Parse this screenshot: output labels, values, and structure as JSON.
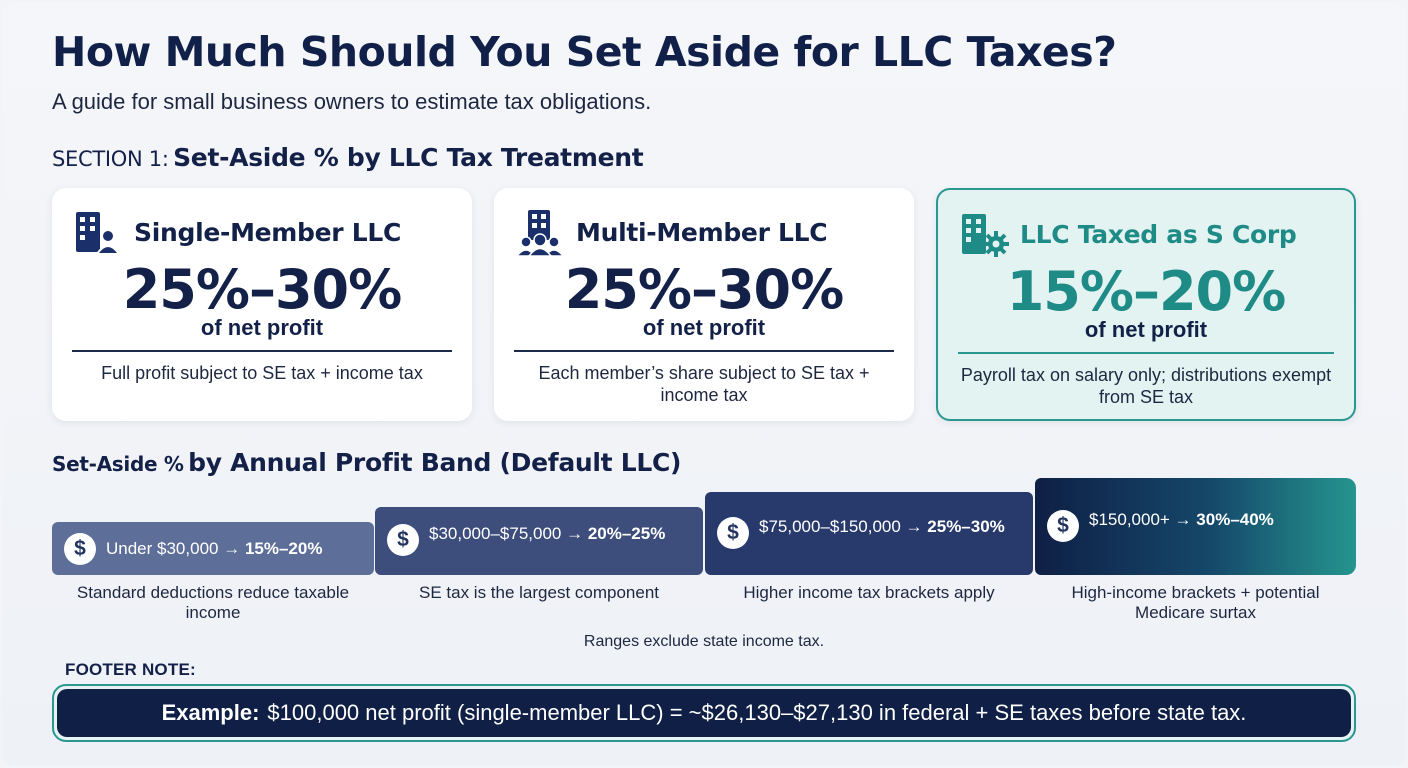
{
  "header": {
    "title": "How Much Should You Set Aside for LLC Taxes?",
    "subtitle": "A guide for small business owners to estimate tax obligations."
  },
  "section1": {
    "prefix": "SECTION 1:",
    "heading": "Set-Aside % by LLC Tax Treatment",
    "cards": [
      {
        "icon": "building-person-icon",
        "title": "Single-Member LLC",
        "percent": "25%–30%",
        "unit": "of net profit",
        "description": "Full profit subject to SE tax + income tax"
      },
      {
        "icon": "building-group-icon",
        "title": "Multi-Member LLC",
        "percent": "25%–30%",
        "unit": "of net profit",
        "description": "Each member’s share subject to SE tax + income tax"
      },
      {
        "icon": "building-gear-icon",
        "title": "LLC Taxed as S Corp",
        "percent": "15%–20%",
        "unit": "of net profit",
        "description": "Payroll tax on salary only; distributions exempt from SE tax",
        "accent": "#1f8b86"
      }
    ]
  },
  "bands": {
    "prefix": "Set-Aside %",
    "heading": "by Annual Profit Band (Default LLC)",
    "items": [
      {
        "range": "Under $30,000 →",
        "value": "15%–20%",
        "note": "Standard deductions reduce taxable income",
        "color": "#5d6e98"
      },
      {
        "range": "$30,000–$75,000 →",
        "value": "20%–25%",
        "note": "SE tax is the largest component",
        "color": "#3d4d7c"
      },
      {
        "range": "$75,000–$150,000 →",
        "value": "25%–30%",
        "note": "Higher income tax brackets apply",
        "color": "#283a6c"
      },
      {
        "range": "$150,000+ →",
        "value": "30%–40%",
        "note": "High-income brackets + potential Medicare surtax",
        "color": "#0f1f45"
      }
    ],
    "dollar_symbol": "$",
    "ranges_note": "Ranges exclude state income tax."
  },
  "footer": {
    "label": "FOOTER NOTE:",
    "example_label": "Example:",
    "example_text": "$100,000 net profit (single-member LLC) = ~$26,130–$27,130 in federal + SE taxes before state tax."
  }
}
